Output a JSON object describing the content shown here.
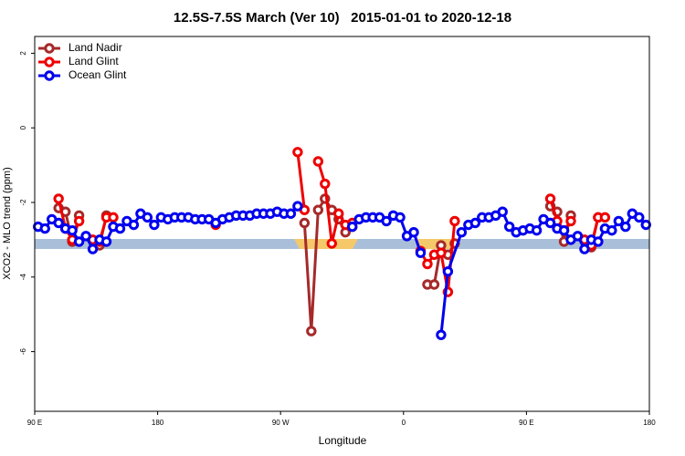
{
  "chart_data": {
    "type": "line",
    "title": "12.5S-7.5S March (Ver 10)   2015-01-01 to 2020-12-18",
    "xlabel": "Longitude",
    "ylabel": "XCO2 - MLO trend (ppm)",
    "xlim": [
      90,
      540
    ],
    "ylim": [
      -7.6,
      2.45
    ],
    "xticks": [
      {
        "value": 90,
        "label": "90 E"
      },
      {
        "value": 180,
        "label": "180"
      },
      {
        "value": 270,
        "label": "90 W"
      },
      {
        "value": 360,
        "label": "0"
      },
      {
        "value": 450,
        "label": "90 E"
      },
      {
        "value": 540,
        "label": "180"
      }
    ],
    "yticks": [
      2,
      0,
      -2,
      -4,
      -6
    ],
    "legend": "top-left",
    "series": [
      {
        "name": "Land Nadir",
        "color": "#a52a2a",
        "x": [
          107.5,
          112.5,
          117.5,
          122.5,
          127.5,
          137.5,
          142.5,
          150,
          287.5,
          292.5,
          297.5,
          302.5,
          307.5,
          312.5,
          317.5,
          322.5,
          350,
          377.5,
          382.5,
          387.5,
          392.5,
          397.5,
          430,
          467.5,
          472.5,
          477.5,
          482.5,
          490,
          497.5,
          502.5
        ],
        "values": [
          -2.15,
          -2.25,
          -3.05,
          -2.35,
          null,
          -3.15,
          -2.35,
          null,
          -2.55,
          -5.45,
          -2.2,
          -1.9,
          -2.2,
          -2.45,
          -2.8,
          -2.65,
          null,
          -4.2,
          -4.2,
          -3.15,
          -3.4,
          -3.1,
          null,
          -2.1,
          -2.25,
          -3.05,
          -2.35,
          null,
          -3.2,
          -2.4
        ]
      },
      {
        "name": "Land Glint",
        "color": "#ee0000",
        "x": [
          107.5,
          112.5,
          117.5,
          122.5,
          127.5,
          132.5,
          137.5,
          142.5,
          147.5,
          190,
          222.5,
          250,
          282.5,
          287.5,
          292.5,
          297.5,
          302.5,
          307.5,
          312.5,
          317.5,
          322.5,
          350,
          372.5,
          377.5,
          382.5,
          387.5,
          392.5,
          397.5,
          430,
          467.5,
          472.5,
          477.5,
          482.5,
          487.5,
          492.5,
          497.5,
          502.5,
          507.5
        ],
        "values": [
          -1.9,
          -2.7,
          -3.0,
          -2.5,
          null,
          -3.0,
          -3.05,
          -2.4,
          -2.4,
          null,
          -2.6,
          null,
          -0.65,
          -2.2,
          null,
          -0.9,
          -1.5,
          -3.1,
          -2.3,
          -2.6,
          -2.55,
          null,
          -3.3,
          -3.65,
          -3.4,
          -3.35,
          -4.4,
          -2.5,
          null,
          -1.9,
          -2.5,
          -2.75,
          -2.5,
          null,
          -3.0,
          -3.15,
          -2.4,
          -2.4
        ]
      },
      {
        "name": "Ocean Glint",
        "color": "#0000ee",
        "x": [
          92.5,
          97.5,
          102.5,
          107.5,
          112.5,
          117.5,
          122.5,
          127.5,
          132.5,
          137.5,
          142.5,
          147.5,
          152.5,
          157.5,
          162.5,
          167.5,
          172.5,
          177.5,
          182.5,
          187.5,
          192.5,
          197.5,
          202.5,
          207.5,
          212.5,
          217.5,
          222.5,
          227.5,
          232.5,
          237.5,
          242.5,
          247.5,
          252.5,
          257.5,
          262.5,
          267.5,
          272.5,
          277.5,
          282.5,
          300,
          322.5,
          327.5,
          332.5,
          337.5,
          342.5,
          347.5,
          352.5,
          357.5,
          362.5,
          367.5,
          372.5,
          380,
          387.5,
          392.5,
          402.5,
          407.5,
          412.5,
          417.5,
          422.5,
          427.5,
          432.5,
          437.5,
          442.5,
          447.5,
          452.5,
          457.5,
          462.5,
          467.5,
          472.5,
          477.5,
          482.5,
          487.5,
          492.5,
          497.5,
          502.5,
          507.5,
          512.5,
          517.5,
          522.5,
          527.5,
          532.5,
          537.5
        ],
        "values": [
          -2.65,
          -2.7,
          -2.45,
          -2.55,
          -2.7,
          -2.75,
          -3.05,
          -2.9,
          -3.25,
          -3.0,
          -3.05,
          -2.65,
          -2.7,
          -2.5,
          -2.6,
          -2.3,
          -2.4,
          -2.6,
          -2.4,
          -2.45,
          -2.4,
          -2.4,
          -2.4,
          -2.45,
          -2.45,
          -2.45,
          -2.55,
          -2.45,
          -2.4,
          -2.35,
          -2.35,
          -2.35,
          -2.3,
          -2.3,
          -2.3,
          -2.25,
          -2.3,
          -2.3,
          -2.1,
          null,
          -2.65,
          -2.45,
          -2.4,
          -2.4,
          -2.4,
          -2.5,
          -2.35,
          -2.4,
          -2.9,
          -2.8,
          -3.35,
          null,
          -5.55,
          -3.85,
          -2.8,
          -2.6,
          -2.55,
          -2.4,
          -2.4,
          -2.35,
          -2.25,
          -2.65,
          -2.8,
          -2.75,
          -2.7,
          -2.75,
          -2.45,
          -2.55,
          -2.7,
          -2.75,
          -3.0,
          -2.9,
          -3.25,
          -3.0,
          -3.05,
          -2.7,
          -2.75,
          -2.5,
          -2.65,
          -2.3,
          -2.4,
          -2.6
        ]
      }
    ]
  }
}
